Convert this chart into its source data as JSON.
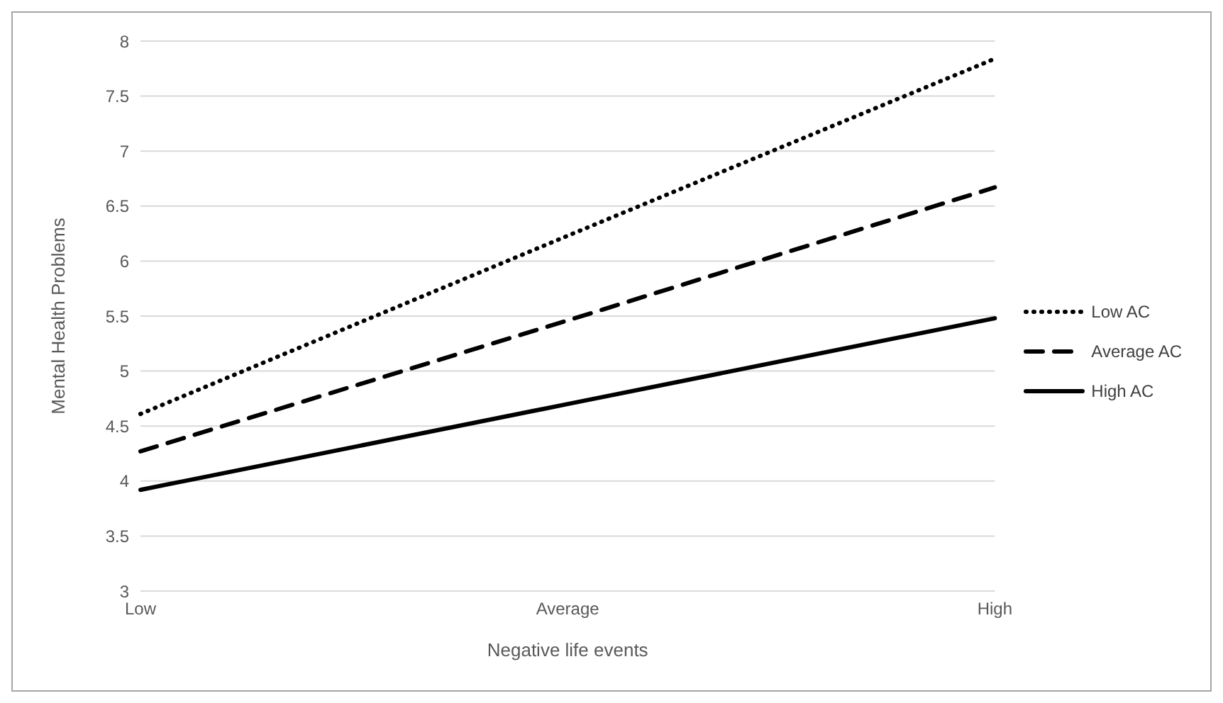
{
  "chart_data": {
    "type": "line",
    "xlabel": "Negative life events",
    "ylabel": "Mental Health Problems",
    "categories": [
      "Low",
      "Average",
      "High"
    ],
    "series": [
      {
        "name": "Low AC",
        "color": "#000000",
        "line_style": "dotted",
        "values": [
          4.61,
          6.23,
          7.84
        ]
      },
      {
        "name": "Average AC",
        "color": "#000000",
        "line_style": "dashed",
        "values": [
          4.27,
          5.46,
          6.67
        ]
      },
      {
        "name": "High AC",
        "color": "#000000",
        "line_style": "solid",
        "values": [
          3.92,
          4.7,
          5.48
        ]
      }
    ],
    "ylim": [
      3,
      8
    ],
    "yticks": [
      3,
      3.5,
      4,
      4.5,
      5,
      5.5,
      6,
      6.5,
      7,
      7.5,
      8
    ],
    "grid": "y",
    "legend": "right",
    "marker": "none"
  }
}
